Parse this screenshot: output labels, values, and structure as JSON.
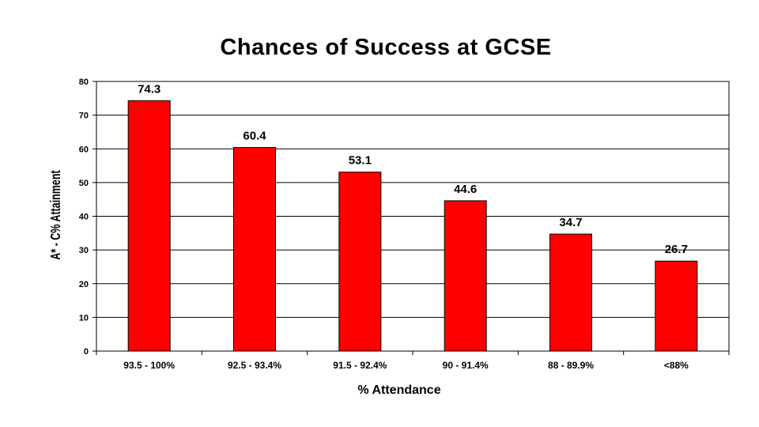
{
  "chart_data": {
    "type": "bar",
    "title": "Chances of Success at GCSE",
    "xlabel": "% Attendance",
    "ylabel": "A* - C% Attainment",
    "categories": [
      "93.5 - 100%",
      "92.5 - 93.4%",
      "91.5 - 92.4%",
      "90 - 91.4%",
      "88 - 89.9%",
      "<88%"
    ],
    "values": [
      74.3,
      60.4,
      53.1,
      44.6,
      34.7,
      26.7
    ],
    "data_labels": [
      "74.3",
      "60.4",
      "53.1",
      "44.6",
      "34.7",
      "26.7"
    ],
    "ylim": [
      0,
      80
    ],
    "yticks": [
      0,
      10,
      20,
      30,
      40,
      50,
      60,
      70,
      80
    ],
    "grid": true,
    "bar_color": "#ff0000",
    "legend": "none"
  }
}
